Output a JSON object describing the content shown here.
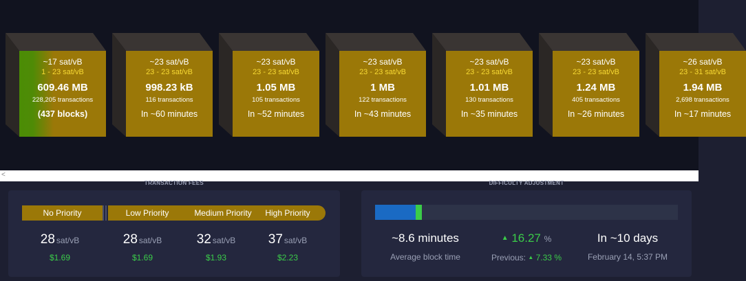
{
  "mempool_blocks": [
    {
      "fee_span": "~17 sat/vB",
      "fee_range": "1 - 23 sat/vB",
      "size": "609.46 MB",
      "transactions": "228,205 transactions",
      "eta": "(437 blocks)"
    },
    {
      "fee_span": "~23 sat/vB",
      "fee_range": "23 - 23 sat/vB",
      "size": "998.23 kB",
      "transactions": "116 transactions",
      "eta": "In ~60 minutes"
    },
    {
      "fee_span": "~23 sat/vB",
      "fee_range": "23 - 23 sat/vB",
      "size": "1.05 MB",
      "transactions": "105 transactions",
      "eta": "In ~52 minutes"
    },
    {
      "fee_span": "~23 sat/vB",
      "fee_range": "23 - 23 sat/vB",
      "size": "1 MB",
      "transactions": "122 transactions",
      "eta": "In ~43 minutes"
    },
    {
      "fee_span": "~23 sat/vB",
      "fee_range": "23 - 23 sat/vB",
      "size": "1.01 MB",
      "transactions": "130 transactions",
      "eta": "In ~35 minutes"
    },
    {
      "fee_span": "~23 sat/vB",
      "fee_range": "23 - 23 sat/vB",
      "size": "1.24 MB",
      "transactions": "405 transactions",
      "eta": "In ~26 minutes"
    },
    {
      "fee_span": "~26 sat/vB",
      "fee_range": "23 - 31 sat/vB",
      "size": "1.94 MB",
      "transactions": "2,698 transactions",
      "eta": "In ~17 minutes"
    }
  ],
  "divider": {
    "arrow": "<"
  },
  "transaction_fees": {
    "title": "TRANSACTION FEES",
    "labels": {
      "no_priority": "No Priority",
      "low_priority": "Low Priority",
      "medium_priority": "Medium Priority",
      "high_priority": "High Priority"
    },
    "columns": [
      {
        "value": "28",
        "unit": "sat/vB",
        "usd": "$1.69"
      },
      {
        "value": "28",
        "unit": "sat/vB",
        "usd": "$1.69"
      },
      {
        "value": "32",
        "unit": "sat/vB",
        "usd": "$1.93"
      },
      {
        "value": "37",
        "unit": "sat/vB",
        "usd": "$2.23"
      }
    ]
  },
  "difficulty_adjustment": {
    "title": "DIFFICULTY ADJUSTMENT",
    "progress_blue": 0.134,
    "progress_green": 0.02,
    "avg_block_time": "~8.6 minutes",
    "avg_block_time_label": "Average block time",
    "change_arrow": "▲",
    "change_value": "16.27",
    "change_unit": "%",
    "previous_label": "Previous:",
    "previous_arrow": "▲",
    "previous_value": "7.33",
    "previous_unit": "%",
    "eta": "In ~10 days",
    "eta_date": "February 14, 5:37 PM"
  },
  "colors": {
    "block_fee": "#9b7808",
    "block_low": "#4b8c05",
    "positive": "#3bcc49",
    "accent_blue": "#1a6ac3"
  }
}
